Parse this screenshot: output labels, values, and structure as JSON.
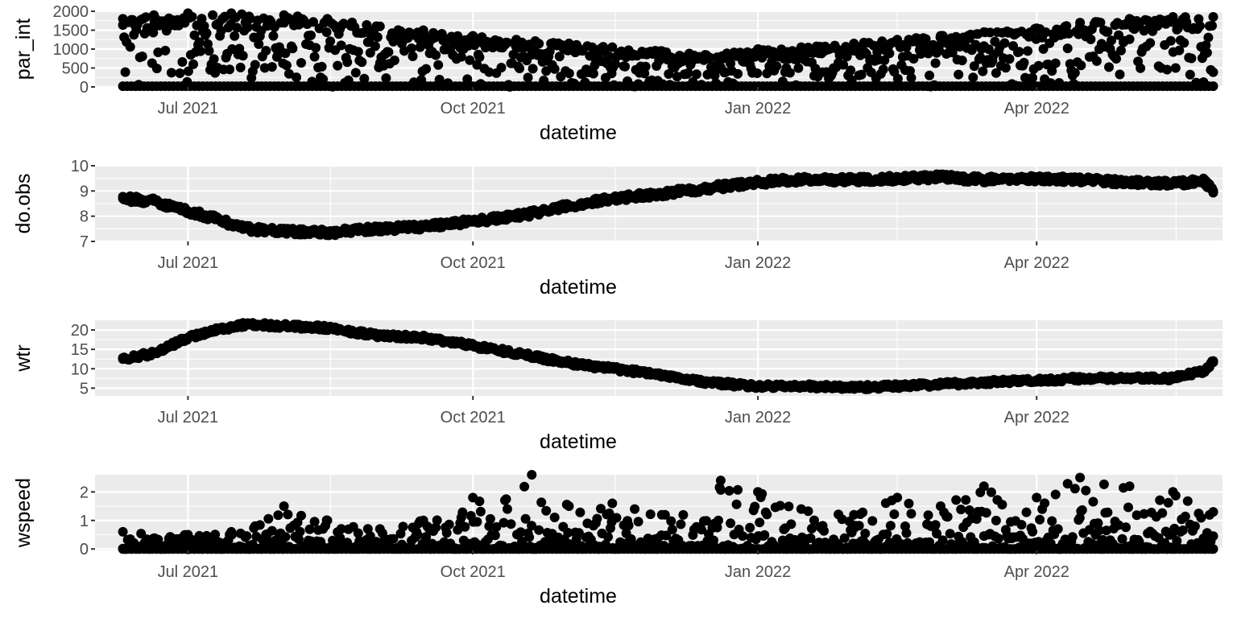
{
  "chart_data": [
    {
      "type": "scatter",
      "xlabel": "datetime",
      "ylabel": "par_int",
      "ylim": [
        0,
        2000
      ],
      "yticks": [
        0,
        500,
        1000,
        1500,
        2000
      ],
      "xlim": [
        "2021-06-01",
        "2022-05-31"
      ],
      "xticks": [
        "2021-07-01",
        "2021-10-01",
        "2022-01-01",
        "2022-04-01"
      ],
      "xtick_labels": [
        "Jul 2021",
        "Oct 2021",
        "Jan 2022",
        "Apr 2022"
      ],
      "grid": true,
      "series": [
        {
          "x": [
            "2021-06-10",
            "2021-06-20",
            "2021-07-01",
            "2021-07-15",
            "2021-08-01",
            "2021-08-15",
            "2021-09-01",
            "2021-09-15",
            "2021-10-01",
            "2021-10-15",
            "2021-11-01",
            "2021-11-15",
            "2021-12-01",
            "2021-12-15",
            "2022-01-01",
            "2022-01-15",
            "2022-02-01",
            "2022-02-15",
            "2022-03-01",
            "2022-03-15",
            "2022-04-01",
            "2022-04-15",
            "2022-05-01",
            "2022-05-15",
            "2022-05-28"
          ],
          "y": [
            1800,
            1900,
            1950,
            1950,
            1900,
            1800,
            1600,
            1500,
            1350,
            1250,
            1150,
            1050,
            950,
            850,
            1000,
            1050,
            1150,
            1250,
            1350,
            1450,
            1550,
            1700,
            1800,
            1850,
            1850
          ]
        }
      ]
    },
    {
      "type": "scatter",
      "xlabel": "datetime",
      "ylabel": "do.obs",
      "ylim": [
        7,
        10
      ],
      "yticks": [
        7,
        8,
        9,
        10
      ],
      "xlim": [
        "2021-06-01",
        "2022-05-31"
      ],
      "xticks": [
        "2021-07-01",
        "2021-10-01",
        "2022-01-01",
        "2022-04-01"
      ],
      "xtick_labels": [
        "Jul 2021",
        "Oct 2021",
        "Jan 2022",
        "Apr 2022"
      ],
      "grid": true,
      "series": [
        {
          "x": [
            "2021-06-10",
            "2021-06-20",
            "2021-07-01",
            "2021-07-10",
            "2021-07-20",
            "2021-08-01",
            "2021-08-15",
            "2021-09-01",
            "2021-09-15",
            "2021-10-01",
            "2021-10-15",
            "2021-11-01",
            "2021-11-15",
            "2021-12-01",
            "2021-12-15",
            "2022-01-01",
            "2022-01-15",
            "2022-02-01",
            "2022-02-15",
            "2022-03-01",
            "2022-03-15",
            "2022-04-01",
            "2022-04-15",
            "2022-05-01",
            "2022-05-15",
            "2022-05-25",
            "2022-05-28"
          ],
          "y": [
            8.7,
            8.6,
            8.2,
            7.9,
            7.5,
            7.4,
            7.35,
            7.5,
            7.6,
            7.8,
            8.0,
            8.4,
            8.7,
            8.9,
            9.1,
            9.35,
            9.45,
            9.45,
            9.5,
            9.55,
            9.45,
            9.5,
            9.45,
            9.35,
            9.3,
            9.4,
            9.0
          ]
        }
      ]
    },
    {
      "type": "scatter",
      "xlabel": "datetime",
      "ylabel": "wtr",
      "ylim": [
        3,
        22.5
      ],
      "yticks": [
        5,
        10,
        15,
        20
      ],
      "xlim": [
        "2021-06-01",
        "2022-05-31"
      ],
      "xticks": [
        "2021-07-01",
        "2021-10-01",
        "2022-01-01",
        "2022-04-01"
      ],
      "xtick_labels": [
        "Jul 2021",
        "Oct 2021",
        "Jan 2022",
        "Apr 2022"
      ],
      "grid": true,
      "series": [
        {
          "x": [
            "2021-06-10",
            "2021-06-20",
            "2021-07-01",
            "2021-07-10",
            "2021-07-20",
            "2021-08-01",
            "2021-08-15",
            "2021-09-01",
            "2021-09-15",
            "2021-10-01",
            "2021-10-15",
            "2021-11-01",
            "2021-11-15",
            "2021-12-01",
            "2021-12-15",
            "2022-01-01",
            "2022-01-15",
            "2022-02-01",
            "2022-02-15",
            "2022-03-01",
            "2022-03-15",
            "2022-04-01",
            "2022-04-15",
            "2022-05-01",
            "2022-05-15",
            "2022-05-25",
            "2022-05-28"
          ],
          "y": [
            12.5,
            14,
            18,
            20,
            21.5,
            21,
            20.5,
            18.5,
            18,
            16,
            14,
            11.5,
            10,
            8.5,
            6.5,
            5.5,
            5.5,
            5.2,
            5.5,
            6,
            6.5,
            7,
            7.5,
            7.5,
            7.5,
            9.5,
            12
          ]
        }
      ]
    },
    {
      "type": "scatter",
      "xlabel": "datetime",
      "ylabel": "wspeed",
      "ylim": [
        -0.05,
        2.6
      ],
      "yticks": [
        0,
        1,
        2
      ],
      "xlim": [
        "2021-06-01",
        "2022-05-31"
      ],
      "xticks": [
        "2021-07-01",
        "2021-10-01",
        "2022-01-01",
        "2022-04-01"
      ],
      "xtick_labels": [
        "Jul 2021",
        "Oct 2021",
        "Jan 2022",
        "Apr 2022"
      ],
      "grid": true,
      "series": [
        {
          "x": [
            "2021-06-10",
            "2021-07-01",
            "2021-07-15",
            "2021-08-01",
            "2021-08-15",
            "2021-09-01",
            "2021-09-15",
            "2021-10-01",
            "2021-10-20",
            "2021-11-01",
            "2021-11-15",
            "2021-12-01",
            "2021-12-20",
            "2022-01-01",
            "2022-01-15",
            "2022-02-01",
            "2022-02-15",
            "2022-03-01",
            "2022-03-15",
            "2022-04-01",
            "2022-04-15",
            "2022-05-01",
            "2022-05-15",
            "2022-05-28"
          ],
          "y": [
            0.6,
            0.5,
            0.6,
            1.5,
            1.0,
            0.7,
            1.0,
            1.8,
            2.6,
            1.5,
            1.6,
            1.2,
            2.4,
            2.0,
            1.4,
            1.2,
            1.8,
            1.5,
            2.2,
            1.8,
            2.5,
            2.2,
            2.0,
            1.3
          ]
        }
      ]
    }
  ]
}
